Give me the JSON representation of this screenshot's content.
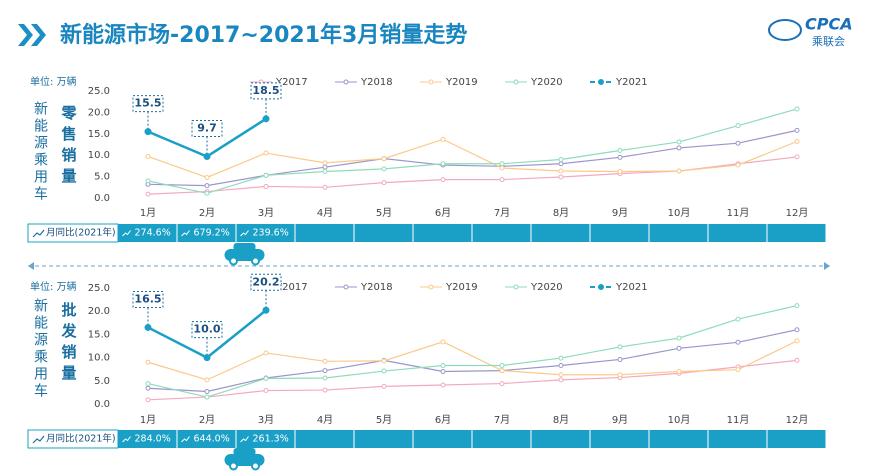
{
  "header": {
    "title": "新能源市场-2017~2021年3月销量走势",
    "logo": "CPCA",
    "logo_sub": "乘联会"
  },
  "chart_data": [
    {
      "type": "line",
      "unit_label": "单位:  万辆",
      "side_label": "新能源乘用车",
      "subtitle": "零售销量",
      "categories": [
        "1月",
        "2月",
        "3月",
        "4月",
        "5月",
        "6月",
        "7月",
        "8月",
        "9月",
        "10月",
        "11月",
        "12月"
      ],
      "ylim": [
        0,
        25
      ],
      "yticks": [
        {
          "value": 0,
          "label": "0.0"
        },
        {
          "value": 5,
          "label": "5.0"
        },
        {
          "value": 10,
          "label": "10.0"
        },
        {
          "value": 15,
          "label": "15.0"
        },
        {
          "value": 20,
          "label": "20.0"
        },
        {
          "value": 25,
          "label": "25.0"
        }
      ],
      "series": [
        {
          "name": "Y2017",
          "color": "#f4a9c0",
          "values": [
            0.9,
            1.5,
            2.7,
            2.5,
            3.6,
            4.3,
            4.3,
            4.9,
            5.7,
            6.3,
            8.0,
            9.6
          ]
        },
        {
          "name": "Y2018",
          "color": "#9a96cc",
          "values": [
            3.2,
            2.9,
            5.3,
            7.2,
            9.2,
            7.7,
            7.4,
            8.0,
            9.5,
            11.7,
            12.8,
            15.8
          ]
        },
        {
          "name": "Y2019",
          "color": "#fcc98a",
          "values": [
            9.7,
            4.8,
            10.5,
            8.2,
            9.2,
            13.7,
            7.0,
            6.3,
            6.2,
            6.3,
            7.7,
            13.2
          ]
        },
        {
          "name": "Y2020",
          "color": "#8edcbc",
          "values": [
            4.0,
            1.1,
            5.3,
            6.2,
            6.8,
            8.0,
            8.0,
            9.0,
            11.1,
            13.1,
            16.9,
            20.8
          ]
        },
        {
          "name": "Y2021",
          "color": "#1aa0c6",
          "values": [
            15.5,
            9.7,
            18.5,
            null,
            null,
            null,
            null,
            null,
            null,
            null,
            null,
            null
          ]
        }
      ],
      "yoy": {
        "label": "月同比(2021年)",
        "values": [
          274.6,
          679.2,
          239.6
        ],
        "value_labels": [
          "274.6%",
          "679.2%",
          "239.6%"
        ]
      }
    },
    {
      "type": "line",
      "unit_label": "单位:  万辆",
      "side_label": "新能源乘用车",
      "subtitle": "批发销量",
      "categories": [
        "1月",
        "2月",
        "3月",
        "4月",
        "5月",
        "6月",
        "7月",
        "8月",
        "9月",
        "10月",
        "11月",
        "12月"
      ],
      "ylim": [
        0,
        25
      ],
      "yticks": [
        {
          "value": 0,
          "label": "0.0"
        },
        {
          "value": 5,
          "label": "5.0"
        },
        {
          "value": 10,
          "label": "10.0"
        },
        {
          "value": 15,
          "label": "15.0"
        },
        {
          "value": 20,
          "label": "20.0"
        },
        {
          "value": 25,
          "label": "25.0"
        }
      ],
      "series": [
        {
          "name": "Y2017",
          "color": "#f4a9c0",
          "values": [
            0.9,
            1.5,
            2.9,
            3.0,
            3.8,
            4.1,
            4.4,
            5.2,
            5.7,
            6.6,
            8.0,
            9.4
          ]
        },
        {
          "name": "Y2018",
          "color": "#9a96cc",
          "values": [
            3.4,
            2.7,
            5.6,
            7.2,
            9.4,
            7.0,
            7.2,
            8.3,
            9.6,
            12.0,
            13.3,
            16.0
          ]
        },
        {
          "name": "Y2019",
          "color": "#fcc98a",
          "values": [
            9.0,
            5.2,
            11.0,
            9.2,
            9.3,
            13.4,
            7.2,
            6.3,
            6.3,
            7.0,
            7.4,
            13.6
          ]
        },
        {
          "name": "Y2020",
          "color": "#8edcbc",
          "values": [
            4.4,
            1.5,
            5.5,
            5.6,
            7.1,
            8.3,
            8.3,
            9.9,
            12.3,
            14.2,
            18.3,
            21.2
          ]
        },
        {
          "name": "Y2021",
          "color": "#1aa0c6",
          "values": [
            16.5,
            10.0,
            20.2,
            null,
            null,
            null,
            null,
            null,
            null,
            null,
            null,
            null
          ],
          "value_labels": [
            "16.5",
            "10.0",
            "20.2",
            null,
            null,
            null,
            null,
            null,
            null,
            null,
            null,
            null
          ]
        }
      ],
      "yoy": {
        "label": "月同比(2021年)",
        "values": [
          284.0,
          644.0,
          261.3
        ],
        "value_labels": [
          "284.0%",
          "644.0%",
          "261.3%"
        ]
      }
    }
  ]
}
